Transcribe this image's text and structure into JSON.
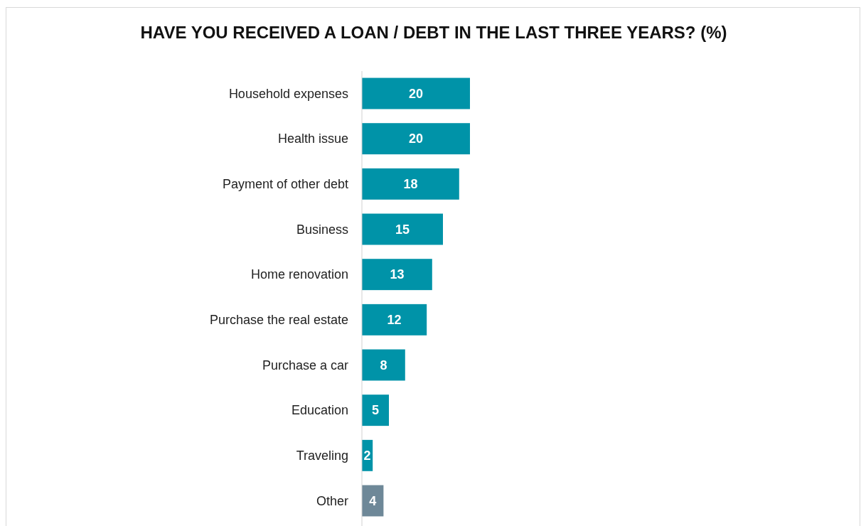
{
  "chart_data": {
    "type": "bar",
    "orientation": "horizontal",
    "title": "HAVE YOU RECEIVED A LOAN / DEBT IN THE LAST THREE YEARS? (%)",
    "categories": [
      "Household expenses",
      "Health issue",
      "Payment of other debt",
      "Business",
      "Home renovation",
      "Purchase the real estate",
      "Purchase a car",
      "Education",
      "Traveling",
      "Other"
    ],
    "values": [
      20,
      20,
      18,
      15,
      13,
      12,
      8,
      5,
      2,
      4
    ],
    "colors": [
      "#0093a8",
      "#0093a8",
      "#0093a8",
      "#0093a8",
      "#0093a8",
      "#0093a8",
      "#0093a8",
      "#0093a8",
      "#0093a8",
      "#6e8898"
    ],
    "data_labels": true
  }
}
